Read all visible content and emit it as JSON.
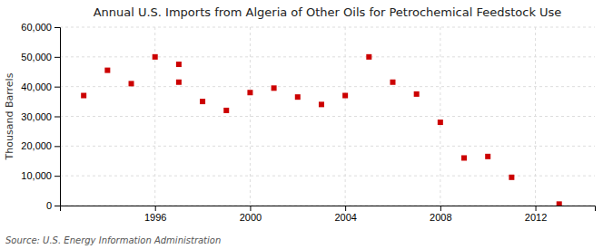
{
  "chart_data": {
    "type": "scatter",
    "title": "Annual U.S. Imports from Algeria of Other Oils for Petrochemical Feedstock Use",
    "y_label": "Thousand Barrels",
    "source": "Source: U.S. Energy Information Administration",
    "x": [
      1993,
      1994,
      1995,
      1996,
      1997,
      1997,
      1998,
      1999,
      2000,
      2001,
      2002,
      2003,
      2004,
      2005,
      2006,
      2007,
      2008,
      2009,
      2010,
      2011,
      2013
    ],
    "values": [
      37000,
      45500,
      41000,
      50000,
      41500,
      47500,
      35000,
      32000,
      38000,
      39500,
      36500,
      34000,
      37000,
      50000,
      41500,
      37500,
      28000,
      16000,
      16500,
      9500,
      500
    ],
    "color": "#cc0000",
    "marker": "square",
    "xlim": [
      1992.0,
      2014.5
    ],
    "xticks": [
      1996,
      2000,
      2004,
      2008,
      2012
    ],
    "ylim": [
      0,
      60000
    ],
    "yticks": [
      0,
      {
        "value": 10000,
        "label": "10,000"
      },
      {
        "value": 20000,
        "label": "20,000"
      },
      {
        "value": 30000,
        "label": "30,000"
      },
      {
        "value": 40000,
        "label": "40,000"
      },
      {
        "value": 50000,
        "label": "50,000"
      },
      {
        "value": 60000,
        "label": "60,000"
      }
    ],
    "grid": true
  }
}
